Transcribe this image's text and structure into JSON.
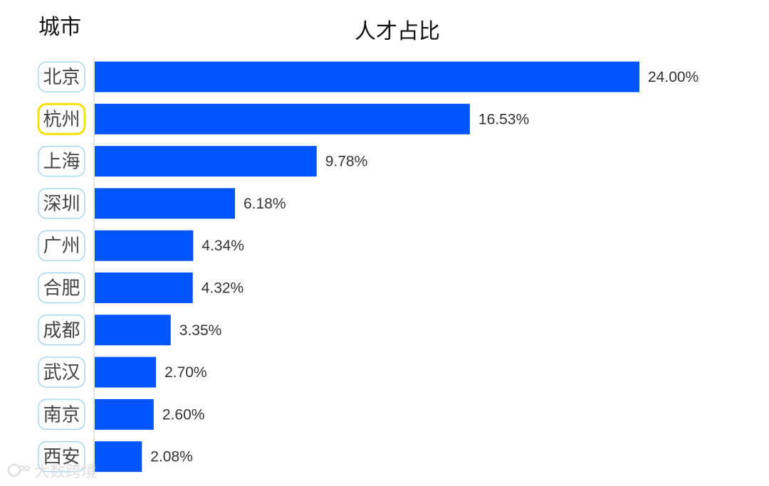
{
  "chart_data": {
    "type": "bar",
    "orientation": "horizontal",
    "title": "人才占比",
    "category_axis_title": "城市",
    "categories": [
      "北京",
      "杭州",
      "上海",
      "深圳",
      "广州",
      "合肥",
      "成都",
      "武汉",
      "南京",
      "西安"
    ],
    "values": [
      24.0,
      16.53,
      9.78,
      6.18,
      4.34,
      4.32,
      3.35,
      2.7,
      2.6,
      2.08
    ],
    "value_labels": [
      "24.00%",
      "16.53%",
      "9.78%",
      "6.18%",
      "4.34%",
      "4.32%",
      "3.35%",
      "2.70%",
      "2.60%",
      "2.08%"
    ],
    "unit": "%",
    "highlighted_category": "杭州",
    "xlim": [
      0,
      24.0
    ],
    "grid": false,
    "legend": "none",
    "colors": {
      "bar": "#0055ff",
      "label_border": "#a8d8ee",
      "highlight_border": "#f5e000"
    }
  },
  "watermark": {
    "text": "大数跨境",
    "icon": "brand-logo-icon"
  }
}
